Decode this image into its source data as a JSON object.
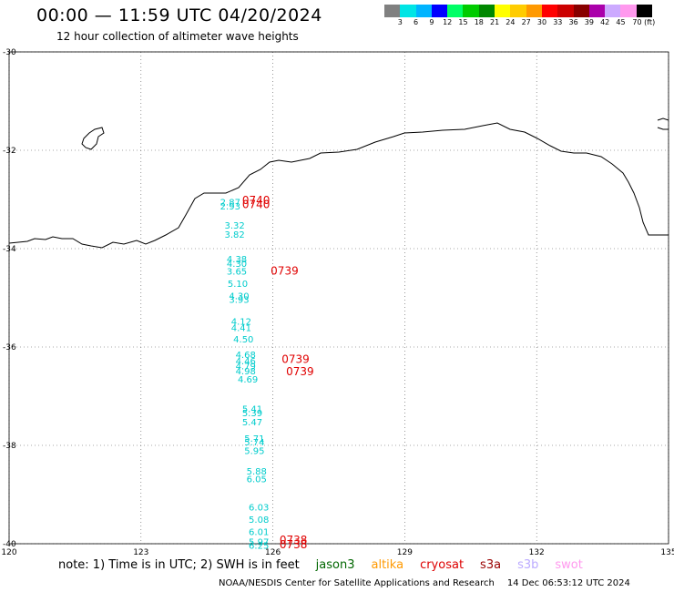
{
  "header": {
    "title": "00:00 — 11:59 UTC 04/20/2024",
    "subtitle": "12 hour collection of altimeter wave heights"
  },
  "colorbar": {
    "colors": [
      "#808080",
      "#00e5e5",
      "#00b4ff",
      "#0000ff",
      "#00ff66",
      "#00cc00",
      "#008800",
      "#ffff00",
      "#ffcc00",
      "#ff9900",
      "#ff0000",
      "#cc0000",
      "#880000",
      "#aa00aa",
      "#ccaaff",
      "#ff99ee",
      "#000000"
    ],
    "labels": [
      "3",
      "6",
      "9",
      "12",
      "15",
      "18",
      "21",
      "24",
      "27",
      "30",
      "33",
      "36",
      "39",
      "42",
      "45",
      "70 (ft)"
    ]
  },
  "axes": {
    "lon_ticks": [
      "120",
      "123",
      "126",
      "129",
      "132",
      "135"
    ],
    "lat_ticks": [
      "-30",
      "-32",
      "-34",
      "-36",
      "-38",
      "-40"
    ]
  },
  "wave_heights": [
    {
      "text": "2.87",
      "lon": 124.8,
      "lat": -33.05
    },
    {
      "text": "2.93",
      "lon": 124.8,
      "lat": -33.13
    },
    {
      "text": "3.32",
      "lon": 124.9,
      "lat": -33.52
    },
    {
      "text": "3.82",
      "lon": 124.9,
      "lat": -33.7
    },
    {
      "text": "4.38",
      "lon": 124.95,
      "lat": -34.2
    },
    {
      "text": "4.30",
      "lon": 124.95,
      "lat": -34.3
    },
    {
      "text": "3.65",
      "lon": 124.95,
      "lat": -34.45
    },
    {
      "text": "5.10",
      "lon": 124.97,
      "lat": -34.7
    },
    {
      "text": "4.30",
      "lon": 125.0,
      "lat": -34.95
    },
    {
      "text": "3.93",
      "lon": 125.0,
      "lat": -35.03
    },
    {
      "text": "4.12",
      "lon": 125.05,
      "lat": -35.47
    },
    {
      "text": "4.41",
      "lon": 125.05,
      "lat": -35.6
    },
    {
      "text": "4.50",
      "lon": 125.1,
      "lat": -35.83
    },
    {
      "text": "4.68",
      "lon": 125.15,
      "lat": -36.15
    },
    {
      "text": "4.46",
      "lon": 125.15,
      "lat": -36.28
    },
    {
      "text": "4.79",
      "lon": 125.15,
      "lat": -36.38
    },
    {
      "text": "4.98",
      "lon": 125.15,
      "lat": -36.48
    },
    {
      "text": "4.69",
      "lon": 125.2,
      "lat": -36.65
    },
    {
      "text": "5.41",
      "lon": 125.3,
      "lat": -37.25
    },
    {
      "text": "5.39",
      "lon": 125.3,
      "lat": -37.33
    },
    {
      "text": "5.47",
      "lon": 125.3,
      "lat": -37.52
    },
    {
      "text": "5.71",
      "lon": 125.35,
      "lat": -37.85
    },
    {
      "text": "5.74",
      "lon": 125.35,
      "lat": -37.93
    },
    {
      "text": "5.95",
      "lon": 125.35,
      "lat": -38.1
    },
    {
      "text": "5.88",
      "lon": 125.4,
      "lat": -38.52
    },
    {
      "text": "6.05",
      "lon": 125.4,
      "lat": -38.68
    },
    {
      "text": "6.03",
      "lon": 125.45,
      "lat": -39.25
    },
    {
      "text": "5.08",
      "lon": 125.45,
      "lat": -39.5
    },
    {
      "text": "6.01",
      "lon": 125.45,
      "lat": -39.75
    },
    {
      "text": "5.97",
      "lon": 125.45,
      "lat": -39.95
    },
    {
      "text": "6.25",
      "lon": 125.45,
      "lat": -40.03
    }
  ],
  "pass_times": [
    {
      "text": "0740",
      "lon": 125.3,
      "lat": -33.02
    },
    {
      "text": "0740",
      "lon": 125.3,
      "lat": -33.1
    },
    {
      "text": "0739",
      "lon": 125.95,
      "lat": -34.45
    },
    {
      "text": "0739",
      "lon": 126.2,
      "lat": -36.25
    },
    {
      "text": "0739",
      "lon": 126.3,
      "lat": -36.5
    },
    {
      "text": "0738",
      "lon": 126.15,
      "lat": -39.93
    },
    {
      "text": "0738",
      "lon": 126.15,
      "lat": -40.02
    }
  ],
  "note": {
    "prefix": "note: 1) Time is in UTC; 2) SWH is in feet",
    "missions": [
      {
        "name": "jason3",
        "color": "#006600"
      },
      {
        "name": "altika",
        "color": "#ff9900"
      },
      {
        "name": "cryosat",
        "color": "#dd0000"
      },
      {
        "name": "s3a",
        "color": "#990000"
      },
      {
        "name": "s3b",
        "color": "#bbaaff"
      },
      {
        "name": "swot",
        "color": "#ff99ee"
      }
    ]
  },
  "credit": {
    "org": "NOAA/NESDIS Center for Satellite Applications and Research",
    "time": "14 Dec 06:53:12 UTC 2024"
  }
}
